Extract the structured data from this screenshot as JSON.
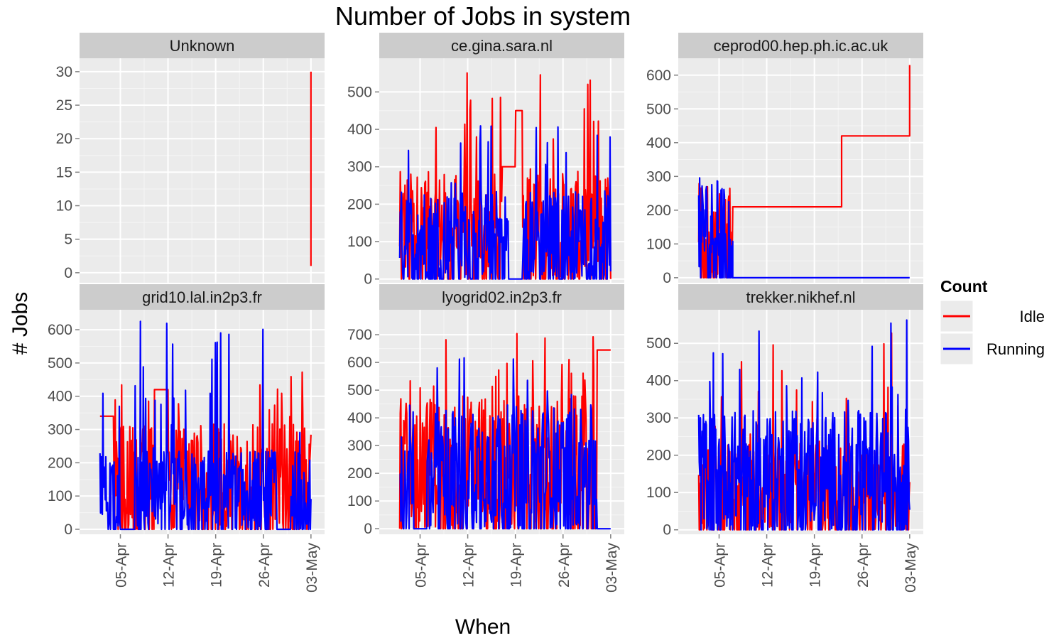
{
  "chart_data": {
    "type": "line",
    "title": "Number of Jobs in system",
    "xlabel": "When",
    "ylabel": "# Jobs",
    "x_tick_labels": [
      "05-Apr",
      "12-Apr",
      "19-Apr",
      "26-Apr",
      "03-May"
    ],
    "x_ticks": [
      "2012-04-05",
      "2012-04-12",
      "2012-04-19",
      "2012-04-26",
      "2012-05-03"
    ],
    "x_range": [
      "2012-03-30",
      "2012-05-05"
    ],
    "legend": {
      "title": "Count",
      "placement": "right",
      "entries": [
        {
          "label": "Idle",
          "color": "#ff0000"
        },
        {
          "label": "Running",
          "color": "#0000ff"
        }
      ]
    },
    "colors": {
      "idle": "#ff0000",
      "running": "#0000ff",
      "panel_bg": "#ebebeb",
      "strip_bg": "#cccccc",
      "grid": "#ffffff"
    },
    "panels": [
      {
        "strip": "Unknown",
        "ylim": [
          -1.5,
          32
        ],
        "y_ticks": [
          0,
          5,
          10,
          15,
          20,
          25,
          30
        ],
        "series": [
          {
            "name": "Idle",
            "type": "step",
            "points": [
              [
                "2012-05-03",
                1
              ],
              [
                "2012-05-03",
                30
              ]
            ]
          },
          {
            "name": "Running",
            "type": "step",
            "points": []
          }
        ]
      },
      {
        "strip": "ce.gina.sara.nl",
        "ylim": [
          -10,
          590
        ],
        "y_ticks": [
          0,
          100,
          200,
          300,
          400,
          500
        ],
        "series": [
          {
            "name": "Idle",
            "type": "noisy",
            "start": "2012-04-02",
            "end": "2012-05-03",
            "lo": 0,
            "hi": 560,
            "avg": 180,
            "steps": [
              [
                "2012-04-17",
                "2012-04-19",
                300
              ],
              [
                "2012-04-19",
                "2012-04-20",
                450
              ]
            ]
          },
          {
            "name": "Running",
            "type": "noisy",
            "start": "2012-04-02",
            "end": "2012-05-03",
            "lo": 0,
            "hi": 420,
            "avg": 150,
            "dips": [
              [
                "2012-04-18",
                "2012-04-20"
              ]
            ]
          }
        ]
      },
      {
        "strip": "ceprod00.hep.ph.ic.ac.uk",
        "ylim": [
          -15,
          650
        ],
        "y_ticks": [
          0,
          100,
          200,
          300,
          400,
          500,
          600
        ],
        "series": [
          {
            "name": "Idle",
            "type": "step",
            "noise": [
              "2012-04-02",
              "2012-04-07",
              0,
              280
            ],
            "points": [
              [
                "2012-04-07",
                210
              ],
              [
                "2012-04-23",
                210
              ],
              [
                "2012-04-23",
                420
              ],
              [
                "2012-05-03",
                420
              ],
              [
                "2012-05-03",
                630
              ]
            ]
          },
          {
            "name": "Running",
            "type": "step",
            "noise": [
              "2012-04-02",
              "2012-04-07",
              0,
              300
            ],
            "points": [
              [
                "2012-04-07",
                0
              ],
              [
                "2012-05-03",
                0
              ]
            ]
          }
        ]
      },
      {
        "strip": "grid10.lal.in2p3.fr",
        "ylim": [
          -15,
          660
        ],
        "y_ticks": [
          0,
          100,
          200,
          300,
          400,
          500,
          600
        ],
        "series": [
          {
            "name": "Idle",
            "type": "noisy",
            "start": "2012-04-02",
            "end": "2012-05-03",
            "lo": 0,
            "hi": 500,
            "avg": 200,
            "steps": [
              [
                "2012-04-02",
                "2012-04-04",
                340
              ],
              [
                "2012-04-10",
                "2012-04-12",
                420
              ]
            ]
          },
          {
            "name": "Running",
            "type": "noisy",
            "start": "2012-04-02",
            "end": "2012-05-03",
            "lo": 0,
            "hi": 630,
            "avg": 150,
            "dips": [
              [
                "2012-04-05",
                "2012-04-07"
              ],
              [
                "2012-04-28",
                "2012-04-30"
              ]
            ]
          }
        ]
      },
      {
        "strip": "lyogrid02.in2p3.fr",
        "ylim": [
          -20,
          790
        ],
        "y_ticks": [
          0,
          100,
          200,
          300,
          400,
          500,
          600,
          700
        ],
        "series": [
          {
            "name": "Idle",
            "type": "noisy",
            "start": "2012-04-02",
            "end": "2012-05-03",
            "lo": 0,
            "hi": 750,
            "avg": 300,
            "steps": [
              [
                "2012-05-01",
                "2012-05-03",
                645
              ]
            ]
          },
          {
            "name": "Running",
            "type": "noisy",
            "start": "2012-04-02",
            "end": "2012-05-03",
            "lo": 0,
            "hi": 640,
            "avg": 280,
            "dips": [
              [
                "2012-04-04",
                "2012-04-06"
              ],
              [
                "2012-05-01",
                "2012-05-03"
              ]
            ]
          }
        ]
      },
      {
        "strip": "trekker.nikhef.nl",
        "ylim": [
          -12,
          590
        ],
        "y_ticks": [
          0,
          100,
          200,
          300,
          400,
          500
        ],
        "series": [
          {
            "name": "Idle",
            "type": "noisy",
            "start": "2012-04-02",
            "end": "2012-05-03",
            "lo": 0,
            "hi": 545,
            "avg": 150
          },
          {
            "name": "Running",
            "type": "noisy",
            "start": "2012-04-02",
            "end": "2012-05-03",
            "lo": 0,
            "hi": 570,
            "avg": 200
          }
        ]
      }
    ]
  }
}
